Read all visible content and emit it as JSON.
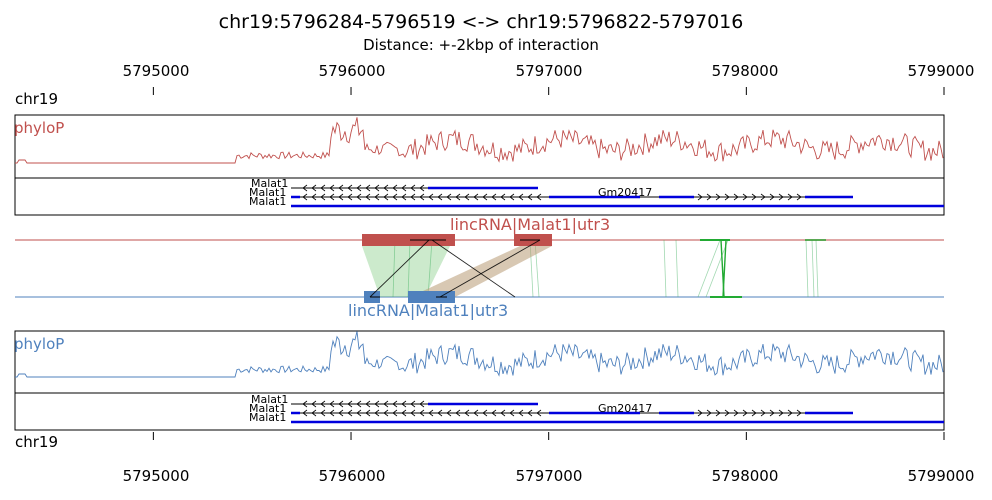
{
  "title": "chr19:5796284-5796519 <-> chr19:5796822-5797016",
  "subtitle": "Distance: +-2kbp of interaction",
  "chromosome": "chr19",
  "axis": {
    "ticks": [
      5795000,
      5796000,
      5797000,
      5798000,
      5799000
    ],
    "tick_labels": [
      "5795000",
      "5796000",
      "5797000",
      "5798000",
      "5799000"
    ],
    "range": [
      5794300,
      5799000
    ]
  },
  "tracks": {
    "top_phylop_label": "phyloP",
    "bottom_phylop_label": "phyloP",
    "top_color": "#c0504d",
    "bottom_color": "#4f81bd"
  },
  "genes": {
    "malat_labels": [
      "Malat1",
      "Malat1",
      "Malat1"
    ],
    "gm_label": "Gm20417",
    "gene_color": "#0000dd"
  },
  "interaction": {
    "top_annotation": "lincRNA|Malat1|utr3",
    "bottom_annotation": "lincRNA|Malat1|utr3",
    "top_regions": [
      [
        5796050,
        5796520
      ],
      [
        5796822,
        5797016
      ]
    ],
    "bottom_regions": [
      [
        5796060,
        5796140
      ],
      [
        5796284,
        5796519
      ]
    ]
  }
}
